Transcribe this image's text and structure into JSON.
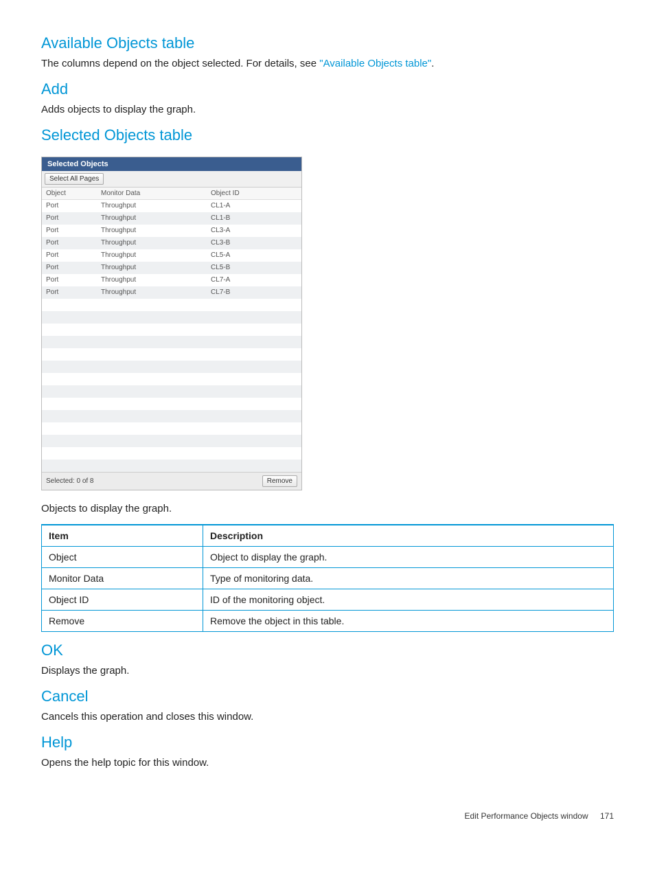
{
  "sections": {
    "available_objects": {
      "heading": "Available Objects table",
      "text_prefix": "The columns depend on the object selected. For details, see ",
      "link": "\"Available Objects table\"",
      "text_suffix": "."
    },
    "add": {
      "heading": "Add",
      "text": "Adds objects to display the graph."
    },
    "selected_objects": {
      "heading": "Selected Objects table",
      "caption": "Objects to display the graph."
    },
    "ok": {
      "heading": "OK",
      "text": "Displays the graph."
    },
    "cancel": {
      "heading": "Cancel",
      "text": "Cancels this operation and closes this window."
    },
    "help": {
      "heading": "Help",
      "text": "Opens the help topic for this window."
    }
  },
  "screenshot_table": {
    "title": "Selected Objects",
    "toolbar_button": "Select All Pages",
    "columns": [
      "Object",
      "Monitor Data",
      "Object ID",
      ""
    ],
    "rows": [
      [
        "Port",
        "Throughput",
        "CL1-A",
        ""
      ],
      [
        "Port",
        "Throughput",
        "CL1-B",
        ""
      ],
      [
        "Port",
        "Throughput",
        "CL3-A",
        ""
      ],
      [
        "Port",
        "Throughput",
        "CL3-B",
        ""
      ],
      [
        "Port",
        "Throughput",
        "CL5-A",
        ""
      ],
      [
        "Port",
        "Throughput",
        "CL5-B",
        ""
      ],
      [
        "Port",
        "Throughput",
        "CL7-A",
        ""
      ],
      [
        "Port",
        "Throughput",
        "CL7-B",
        ""
      ]
    ],
    "empty_rows": 14,
    "footer_status": "Selected:  0    of  8",
    "remove_button": "Remove"
  },
  "description_table": {
    "columns": [
      "Item",
      "Description"
    ],
    "rows": [
      [
        "Object",
        "Object to display the graph."
      ],
      [
        "Monitor Data",
        "Type of monitoring data."
      ],
      [
        "Object ID",
        "ID of the monitoring object."
      ],
      [
        "Remove",
        "Remove the object in this table."
      ]
    ]
  },
  "footer": {
    "title": "Edit Performance Objects window",
    "page": "171"
  },
  "colors": {
    "heading": "#0096d6",
    "panel_header": "#3a5d8f",
    "table_border": "#0096d6"
  }
}
